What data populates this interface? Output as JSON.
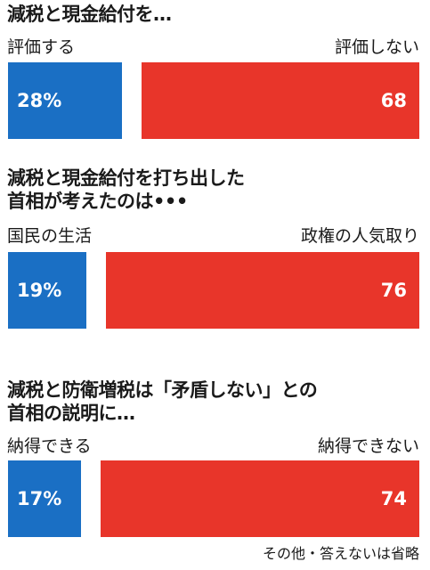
{
  "chart_data": [
    {
      "type": "bar",
      "question_lines": [
        "減税と現金給付を…"
      ],
      "categories": [
        "評価する",
        "評価しない"
      ],
      "values": [
        28,
        68
      ],
      "value_labels": [
        "28%",
        "68"
      ],
      "colors": [
        "#1a6fc4",
        "#e8352a"
      ]
    },
    {
      "type": "bar",
      "question_lines": [
        "減税と現金給付を打ち出した",
        "首相が考えたのは•••"
      ],
      "categories": [
        "国民の生活",
        "政権の人気取り"
      ],
      "values": [
        19,
        76
      ],
      "value_labels": [
        "19%",
        "76"
      ],
      "colors": [
        "#1a6fc4",
        "#e8352a"
      ]
    },
    {
      "type": "bar",
      "question_lines": [
        "減税と防衛増税は「矛盾しない」との",
        "首相の説明に…"
      ],
      "categories": [
        "納得できる",
        "納得できない"
      ],
      "values": [
        17,
        74
      ],
      "value_labels": [
        "17%",
        "74"
      ],
      "colors": [
        "#1a6fc4",
        "#e8352a"
      ]
    }
  ],
  "footnote": "その他・答えないは省略"
}
